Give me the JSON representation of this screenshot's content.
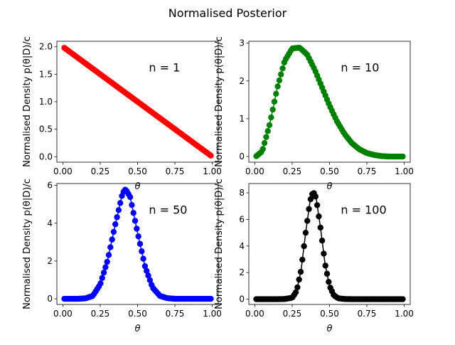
{
  "figure": {
    "title": "Normalised Posterior"
  },
  "chart_data": [
    {
      "type": "line",
      "panel": "top-left",
      "annotation": "n = 1",
      "xlabel": "θ",
      "ylabel": "Normalised Density p(θ|D)/c",
      "color": "#ff0000",
      "xlim": [
        -0.04,
        1.04
      ],
      "ylim": [
        -0.1,
        2.1
      ],
      "xticks": [
        0.0,
        0.25,
        0.5,
        0.75,
        1.0
      ],
      "xtick_labels": [
        "0.00",
        "0.25",
        "0.50",
        "0.75",
        "1.00"
      ],
      "yticks": [
        0.0,
        0.5,
        1.0,
        1.5,
        2.0
      ],
      "ytick_labels": [
        "0.0",
        "0.5",
        "1.0",
        "1.5",
        "2.0"
      ],
      "x": [
        0.01,
        0.05,
        0.1,
        0.15,
        0.2,
        0.25,
        0.3,
        0.35,
        0.4,
        0.45,
        0.5,
        0.55,
        0.6,
        0.65,
        0.7,
        0.75,
        0.8,
        0.85,
        0.9,
        0.95,
        0.99
      ],
      "y": [
        1.98,
        1.9,
        1.8,
        1.7,
        1.6,
        1.5,
        1.4,
        1.3,
        1.2,
        1.1,
        1.0,
        0.9,
        0.8,
        0.7,
        0.6,
        0.5,
        0.4,
        0.3,
        0.2,
        0.1,
        0.02
      ]
    },
    {
      "type": "line",
      "panel": "top-right",
      "annotation": "n = 10",
      "xlabel": "θ",
      "ylabel": "Normalised Density p(θ|D)/c",
      "color": "#008000",
      "xlim": [
        -0.04,
        1.04
      ],
      "ylim": [
        -0.15,
        3.05
      ],
      "xticks": [
        0.0,
        0.25,
        0.5,
        0.75,
        1.0
      ],
      "xtick_labels": [
        "0.00",
        "0.25",
        "0.50",
        "0.75",
        "1.00"
      ],
      "yticks": [
        0,
        1,
        2,
        3
      ],
      "ytick_labels": [
        "0",
        "1",
        "2",
        "3"
      ],
      "x": [
        0.01,
        0.05,
        0.1,
        0.15,
        0.2,
        0.25,
        0.3,
        0.35,
        0.4,
        0.45,
        0.5,
        0.55,
        0.6,
        0.65,
        0.7,
        0.75,
        0.8,
        0.85,
        0.9,
        0.95,
        0.99
      ],
      "y": [
        0.01,
        0.14,
        0.86,
        1.81,
        2.53,
        2.86,
        2.88,
        2.7,
        2.31,
        1.83,
        1.35,
        0.93,
        0.6,
        0.35,
        0.19,
        0.09,
        0.04,
        0.01,
        0.0,
        0.0,
        0.0
      ]
    },
    {
      "type": "line",
      "panel": "bottom-left",
      "annotation": "n = 50",
      "xlabel": "θ",
      "ylabel": "Normalised Density p(θ|D)/c",
      "color": "#0000ff",
      "xlim": [
        -0.04,
        1.04
      ],
      "ylim": [
        -0.3,
        6.1
      ],
      "xticks": [
        0.0,
        0.25,
        0.5,
        0.75,
        1.0
      ],
      "xtick_labels": [
        "0.00",
        "0.25",
        "0.50",
        "0.75",
        "1.00"
      ],
      "yticks": [
        0,
        2,
        4,
        6
      ],
      "ytick_labels": [
        "0",
        "2",
        "4",
        "6"
      ],
      "x": [
        0.01,
        0.05,
        0.1,
        0.15,
        0.2,
        0.25,
        0.3,
        0.35,
        0.4,
        0.42,
        0.45,
        0.5,
        0.55,
        0.6,
        0.65,
        0.7,
        0.75,
        0.8,
        0.85,
        0.9,
        0.95,
        0.99
      ],
      "y": [
        0.0,
        0.0,
        0.0,
        0.02,
        0.15,
        0.76,
        2.05,
        3.9,
        5.6,
        5.8,
        5.4,
        3.5,
        1.71,
        0.6,
        0.15,
        0.03,
        0.0,
        0.0,
        0.0,
        0.0,
        0.0,
        0.0
      ]
    },
    {
      "type": "line",
      "panel": "bottom-right",
      "annotation": "n = 100",
      "xlabel": "θ",
      "ylabel": "Normalised Density p(θ|D)/c",
      "color": "#000000",
      "xlim": [
        -0.04,
        1.04
      ],
      "ylim": [
        -0.4,
        8.7
      ],
      "xticks": [
        0.0,
        0.25,
        0.5,
        0.75,
        1.0
      ],
      "xtick_labels": [
        "0.00",
        "0.25",
        "0.50",
        "0.75",
        "1.00"
      ],
      "yticks": [
        0,
        2,
        4,
        6,
        8
      ],
      "ytick_labels": [
        "0",
        "2",
        "4",
        "6",
        "8"
      ],
      "x": [
        0.01,
        0.05,
        0.1,
        0.15,
        0.2,
        0.25,
        0.28,
        0.31,
        0.34,
        0.37,
        0.39,
        0.41,
        0.44,
        0.47,
        0.5,
        0.53,
        0.56,
        0.6,
        0.65,
        0.7,
        0.75,
        0.8,
        0.85,
        0.9,
        0.95,
        0.99
      ],
      "y": [
        0.0,
        0.0,
        0.0,
        0.0,
        0.01,
        0.1,
        0.61,
        2.2,
        4.97,
        7.4,
        8.1,
        7.64,
        5.34,
        2.66,
        0.99,
        0.27,
        0.06,
        0.01,
        0.0,
        0.0,
        0.0,
        0.0,
        0.0,
        0.0,
        0.0,
        0.0
      ]
    }
  ]
}
